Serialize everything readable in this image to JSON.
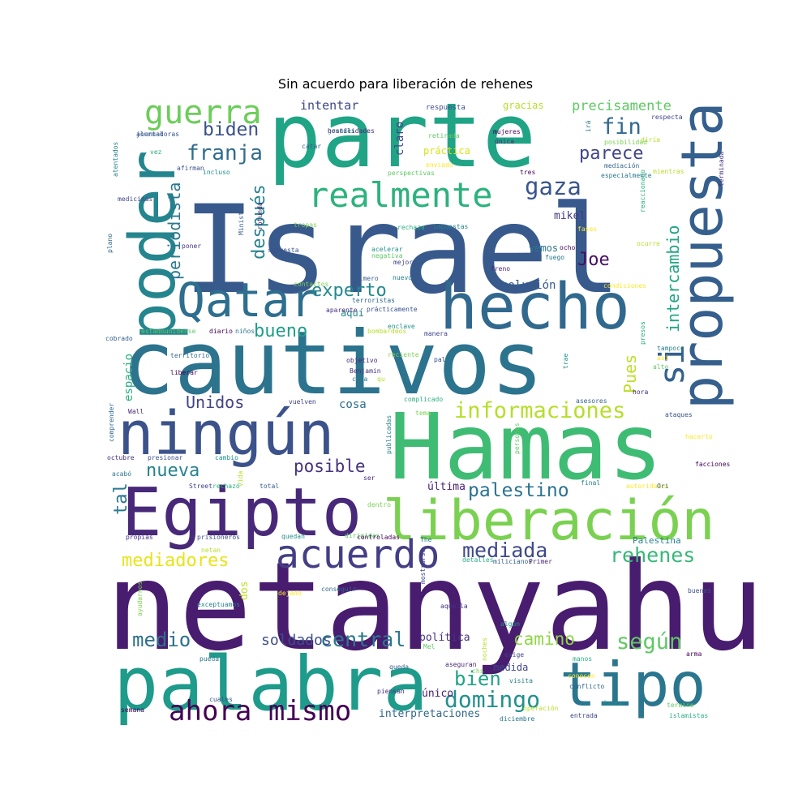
{
  "title": "Sin acuerdo para liberación de rehenes",
  "words": [
    {
      "text": "netanyahu",
      "color": "#481c6e"
    },
    {
      "text": "Israel",
      "color": "#38598c"
    },
    {
      "text": "cautivos",
      "color": "#2c738e"
    },
    {
      "text": "parte",
      "color": "#20a486"
    },
    {
      "text": "Hamas",
      "color": "#3fbc73"
    },
    {
      "text": "palabra",
      "color": "#1e9b8a"
    },
    {
      "text": "Egipto",
      "color": "#482878"
    },
    {
      "text": "liberación",
      "color": "#7ad151"
    },
    {
      "text": "ningún",
      "color": "#3b528b"
    },
    {
      "text": "hecho",
      "color": "#31688e"
    },
    {
      "text": "tipo",
      "color": "#2a768e"
    },
    {
      "text": "poder",
      "color": "#25858e"
    },
    {
      "text": "propuesta",
      "color": "#355f8d"
    },
    {
      "text": "Qatar",
      "color": "#2e6e8e"
    },
    {
      "text": "acuerdo",
      "color": "#433e85"
    },
    {
      "text": "realmente",
      "color": "#2db27d"
    },
    {
      "text": "guerra",
      "color": "#6ccd5a"
    },
    {
      "text": "informaciones",
      "color": "#b5de2b"
    },
    {
      "text": "ahora mismo",
      "color": "#440154"
    },
    {
      "text": "domingo",
      "color": "#21918c"
    },
    {
      "text": "rehenes",
      "color": "#37b878"
    },
    {
      "text": "mediada",
      "color": "#3e4989"
    },
    {
      "text": "mediadores",
      "color": "#e7e419"
    },
    {
      "text": "palestino",
      "color": "#2c728e"
    },
    {
      "text": "según",
      "color": "#5ec962"
    },
    {
      "text": "central",
      "color": "#2a788e"
    },
    {
      "text": "camino",
      "color": "#8fd744"
    },
    {
      "text": "medio",
      "color": "#2d708e"
    },
    {
      "text": "posible",
      "color": "#46327e"
    },
    {
      "text": "nueva",
      "color": "#26828e"
    },
    {
      "text": "bien",
      "color": "#20a386"
    },
    {
      "text": "soldados",
      "color": "#3d4e8a"
    },
    {
      "text": "experto",
      "color": "#23898e"
    },
    {
      "text": "bueno",
      "color": "#1f9f88"
    },
    {
      "text": "Unidos",
      "color": "#414487"
    },
    {
      "text": "franja",
      "color": "#2f6c8e"
    },
    {
      "text": "biden",
      "color": "#3b528b"
    },
    {
      "text": "fin",
      "color": "#31688e"
    },
    {
      "text": "parece",
      "color": "#404688"
    },
    {
      "text": "gaza",
      "color": "#39558c"
    },
    {
      "text": "precisamente",
      "color": "#5ec962"
    },
    {
      "text": "intentar",
      "color": "#3e4989"
    },
    {
      "text": "Joe",
      "color": "#471063"
    },
    {
      "text": "si",
      "color": "#34618d"
    },
    {
      "text": "intercambio",
      "color": "#22a785"
    },
    {
      "text": "después",
      "color": "#26828e"
    },
    {
      "text": "periodista",
      "color": "#2a788e"
    },
    {
      "text": "tal",
      "color": "#29798e"
    },
    {
      "text": "Pues",
      "color": "#bddf26"
    },
    {
      "text": "espacio",
      "color": "#29af7f"
    },
    {
      "text": "solución",
      "color": "#365c8d"
    },
    {
      "text": "mikel",
      "color": "#443983"
    },
    {
      "text": "claro",
      "color": "#414487"
    },
    {
      "text": "cosa",
      "color": "#2e6d8e"
    },
    {
      "text": "última",
      "color": "#482475"
    },
    {
      "text": "política",
      "color": "#46337e"
    },
    {
      "text": "medida",
      "color": "#3f4788"
    },
    {
      "text": "único",
      "color": "#482173"
    },
    {
      "text": "interpretaciones",
      "color": "#31688e"
    },
    {
      "text": "aquí",
      "color": "#23888e"
    },
    {
      "text": "vemos",
      "color": "#2a788e"
    },
    {
      "text": "dos",
      "color": "#bddf26"
    },
    {
      "text": "gracias",
      "color": "#b8de29"
    },
    {
      "text": "práctica",
      "color": "#d8e219"
    },
    {
      "text": "respuesta",
      "color": "#3e4c8a"
    },
    {
      "text": "Palestina",
      "color": "#26818e"
    },
    {
      "text": "ataques",
      "color": "#3b528b"
    },
    {
      "text": "hora",
      "color": "#482878"
    }
  ],
  "small_words": [
    "alentadoras",
    "grandes",
    "retirada",
    "mujeres",
    "irá",
    "diría",
    "respecta",
    "vez",
    "catar",
    "única",
    "posibilidad",
    "atentados",
    "enviado",
    "mediación",
    "terminada",
    "afirman",
    "incluso",
    "perspectivas",
    "tres",
    "especialmente",
    "mientras",
    "medicinas",
    "reaccionado",
    "Ministro",
    "rotunda",
    "tropas",
    "impuestas",
    "fases",
    "plano",
    "poner",
    "supuesta",
    "acelerar",
    "negativa",
    "ocho",
    "fuego",
    "ocurre",
    "mejor",
    "rechaza",
    "primero",
    "freno",
    "contactos",
    "nuevo",
    "condiciones",
    "terroristas",
    "aparente",
    "prácticamente",
    "enclave",
    "estadounidense",
    "diario",
    "niños",
    "bombardeos",
    "manera",
    "presos",
    "cobrado",
    "objetivo",
    "reciente",
    "tampoco",
    "así",
    "territorio",
    "Benjamin",
    "pal",
    "trae",
    "alto",
    "liberar",
    "cada",
    "qu",
    "vuelven",
    "complicado",
    "asesores",
    "Wall",
    "tema",
    "publicadas",
    "hacerlo",
    "comprender",
    "octubre",
    "presionar",
    "cambio",
    "personas",
    "facciones",
    "acabó",
    "vida",
    "Street",
    "rechazó",
    "total",
    "ser",
    "dentro",
    "final",
    "autoridades",
    "Ori",
    "propias",
    "prisioneros",
    "quedan",
    "dirigidas",
    "controladas",
    "The",
    "netan",
    "mostrarse",
    "detalles",
    "milicianos",
    "Primer",
    "ayudarnos",
    "exceptuamos",
    "dejado",
    "conseguir",
    "aquella",
    "buenas",
    "algún",
    "Mel",
    "arma",
    "pueda",
    "noches",
    "exige",
    "manos",
    "queda",
    "aseguran",
    "chs",
    "visita",
    "conocen",
    "conflicto",
    "piensan",
    "cuales",
    "éxito",
    "termine",
    "semana",
    "diciembre",
    "operación",
    "entrada",
    "islamistas",
    "journal",
    "hostilidades"
  ]
}
